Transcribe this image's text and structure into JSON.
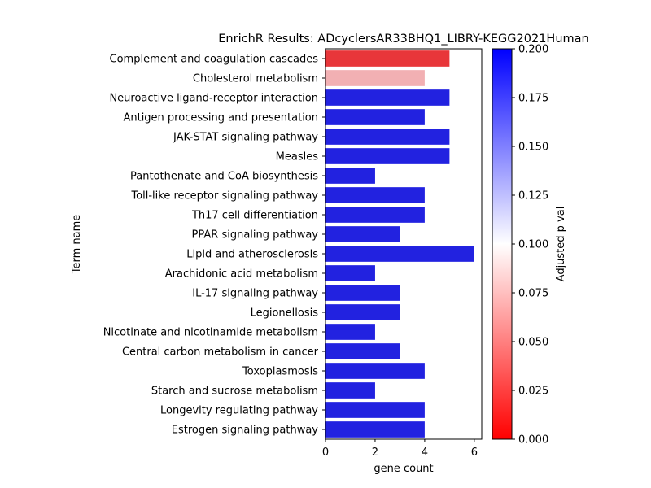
{
  "chart_data": {
    "type": "bar",
    "orientation": "horizontal",
    "title": "EnrichR Results: ADcyclersAR33BHQ1_LIBRY-KEGG2021Human",
    "xlabel": "gene count",
    "ylabel": "Term name",
    "xlim": [
      0,
      6.3
    ],
    "xticks": [
      0,
      2,
      4,
      6
    ],
    "grid": false,
    "categories": [
      "Complement and coagulation cascades",
      "Cholesterol metabolism",
      "Neuroactive ligand-receptor interaction",
      "Antigen processing and presentation",
      "JAK-STAT signaling pathway",
      "Measles",
      "Pantothenate and CoA biosynthesis",
      "Toll-like receptor signaling pathway",
      "Th17 cell differentiation",
      "PPAR signaling pathway",
      "Lipid and atherosclerosis",
      "Arachidonic acid metabolism",
      "IL-17 signaling pathway",
      "Legionellosis",
      "Nicotinate and nicotinamide metabolism",
      "Central carbon metabolism in cancer",
      "Toxoplasmosis",
      "Starch and sucrose metabolism",
      "Longevity regulating pathway",
      "Estrogen signaling pathway"
    ],
    "values": [
      5,
      4,
      5,
      4,
      5,
      5,
      2,
      4,
      4,
      3,
      6,
      2,
      3,
      3,
      2,
      3,
      4,
      2,
      4,
      4
    ],
    "bar_colors": [
      "#e8363a",
      "#f2b0b3",
      "#2222e0",
      "#2222e0",
      "#2222e0",
      "#2222e0",
      "#2222e0",
      "#2222e0",
      "#2222e0",
      "#2222e0",
      "#2222e0",
      "#2222e0",
      "#2222e0",
      "#2222e0",
      "#2222e0",
      "#2222e0",
      "#2222e0",
      "#2222e0",
      "#2222e0",
      "#2222e0"
    ],
    "colorbar": {
      "label": "Adjusted p val",
      "range": [
        0,
        0.2
      ],
      "ticks": [
        "0.000",
        "0.025",
        "0.050",
        "0.075",
        "0.100",
        "0.125",
        "0.150",
        "0.175",
        "0.200"
      ],
      "colormap": [
        "#ff0000",
        "#ffffff",
        "#0000ff"
      ]
    }
  }
}
